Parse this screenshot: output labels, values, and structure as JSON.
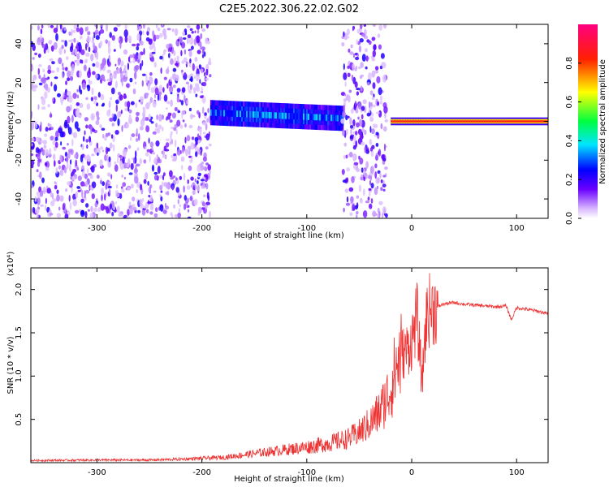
{
  "figure": {
    "title": "C2E5.2022.306.22.02.G02"
  },
  "chart_data": [
    {
      "type": "heatmap",
      "xlabel": "Height of straight line (km)",
      "ylabel": "Frequency (Hz)",
      "xlim": [
        -363,
        130
      ],
      "ylim": [
        -50,
        50
      ],
      "x_ticks": [
        -300,
        -200,
        -100,
        0,
        100
      ],
      "x_tick_labels": [
        "-300",
        "-200",
        "-100",
        "0",
        "100"
      ],
      "y_ticks": [
        -40,
        -20,
        0,
        20,
        40
      ],
      "y_tick_labels": [
        "-40",
        "-20",
        "0",
        "20",
        "40"
      ],
      "colorbar": {
        "label": "Normalized spectral amplitude",
        "range": [
          0,
          1
        ],
        "ticks": [
          0.0,
          0.2,
          0.4,
          0.6,
          0.8
        ],
        "tick_labels": [
          "0.0",
          "0.2",
          "0.4",
          "0.6",
          "0.8"
        ],
        "colors": [
          "#ffffff",
          "#6a00ff",
          "#0000ff",
          "#00ffff",
          "#00ff00",
          "#ffff00",
          "#ff0000",
          "#ff0080"
        ]
      },
      "regions": [
        {
          "x": [
            -363,
            -192
          ],
          "f": [
            -50,
            50
          ],
          "level": 0.1,
          "description": "broadband noise"
        },
        {
          "x": [
            -192,
            -65
          ],
          "f": [
            -5,
            8
          ],
          "level": 0.3,
          "description": "carrier line drifting from ~5 Hz to ~0 Hz"
        },
        {
          "x": [
            -66,
            -24
          ],
          "f": [
            -50,
            50
          ],
          "level": 0.1,
          "description": "broadband noise"
        },
        {
          "x": [
            -20,
            130
          ],
          "f": [
            -2,
            2
          ],
          "level": 0.85,
          "description": "strong carrier at 0 Hz"
        }
      ],
      "grid": false
    },
    {
      "type": "line",
      "xlabel": "Height of straight line (km)",
      "ylabel": "SNR (10 * v/v)",
      "y_multiplier_label": "(x10⁴)",
      "xlim": [
        -363,
        130
      ],
      "ylim": [
        0,
        22500
      ],
      "x_ticks": [
        -300,
        -200,
        -100,
        0,
        100
      ],
      "x_tick_labels": [
        "-300",
        "-200",
        "-100",
        "0",
        "100"
      ],
      "y_ticks": [
        5000,
        10000,
        15000,
        20000
      ],
      "y_tick_labels": [
        "0.5",
        "1.0",
        "1.5",
        "2.0"
      ],
      "color": "#ee3333",
      "series": [
        {
          "x": [
            -363,
            -300,
            -250,
            -220,
            -200,
            -180,
            -160,
            -140,
            -120,
            -100,
            -80,
            -60,
            -50,
            -40,
            -30,
            -20,
            -15,
            -10,
            -5,
            0,
            5,
            10,
            12,
            15,
            20,
            25,
            30,
            40,
            50,
            60,
            70,
            80,
            90,
            95,
            100,
            110,
            120,
            130
          ],
          "y": [
            250,
            300,
            300,
            400,
            500,
            600,
            900,
            1200,
            1500,
            1800,
            2200,
            2800,
            3500,
            4500,
            6000,
            8500,
            11000,
            12500,
            13000,
            14000,
            17000,
            9000,
            14000,
            17500,
            17800,
            18000,
            18300,
            18500,
            18300,
            18200,
            18100,
            18000,
            18100,
            16500,
            17900,
            17700,
            17500,
            17200
          ]
        }
      ],
      "grid": false
    }
  ]
}
